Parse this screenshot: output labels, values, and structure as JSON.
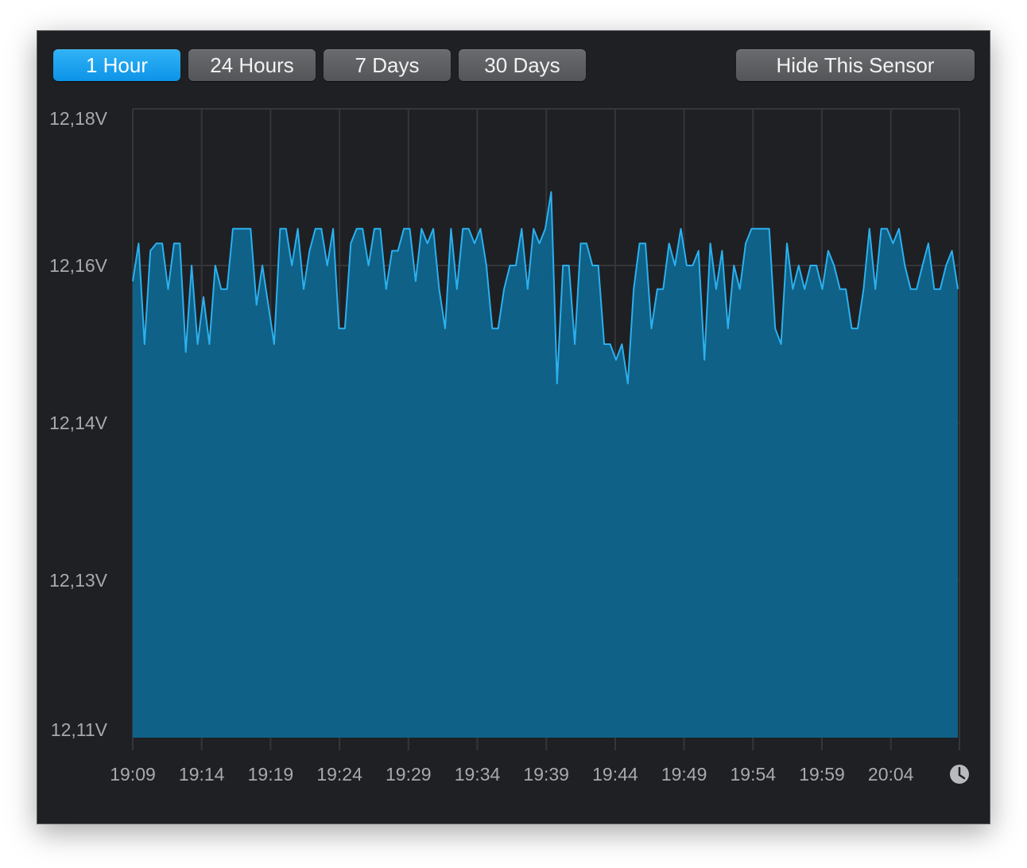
{
  "range_buttons": [
    {
      "label": "1 Hour",
      "active": true
    },
    {
      "label": "24 Hours",
      "active": false
    },
    {
      "label": "7 Days",
      "active": false
    },
    {
      "label": "30 Days",
      "active": false
    }
  ],
  "hide_sensor_label": "Hide This Sensor",
  "clock_icon": "clock-icon",
  "colors": {
    "line": "#2bb0ef",
    "fill": "#0f6187",
    "grid": "#34363a",
    "active_button": "#15a0ee"
  },
  "chart_data": {
    "type": "area",
    "xlabel": "",
    "ylabel": "",
    "x_ticks": [
      "19:09",
      "19:14",
      "19:19",
      "19:24",
      "19:29",
      "19:34",
      "19:39",
      "19:44",
      "19:49",
      "19:54",
      "19:59",
      "20:04"
    ],
    "y_ticks": [
      "12,18V",
      "12,16V",
      "12,14V",
      "12,13V",
      "12,11V"
    ],
    "grid": true,
    "series": [
      {
        "x": [
          "19:09",
          "19:09",
          "19:10",
          "19:10",
          "19:10",
          "19:11",
          "19:11",
          "19:11",
          "19:12",
          "19:12",
          "19:12",
          "19:13",
          "19:13",
          "19:13",
          "19:14",
          "19:14",
          "19:14",
          "19:15",
          "19:15",
          "19:15",
          "19:16",
          "19:16",
          "19:17",
          "19:17",
          "19:18",
          "19:18",
          "19:19",
          "19:19",
          "19:19",
          "19:20",
          "19:20",
          "19:21",
          "19:21",
          "19:21",
          "19:22",
          "19:22",
          "19:23",
          "19:23",
          "19:24",
          "19:24",
          "19:25",
          "19:25",
          "19:26",
          "19:26",
          "19:26",
          "19:27",
          "19:27",
          "19:28",
          "19:28",
          "19:29",
          "19:29",
          "19:30",
          "19:30",
          "19:30",
          "19:31",
          "19:31",
          "19:32",
          "19:32",
          "19:33",
          "19:33",
          "19:34",
          "19:34",
          "19:35",
          "19:35",
          "19:35",
          "19:36",
          "19:36",
          "19:37",
          "19:37",
          "19:38",
          "19:38",
          "19:39",
          "19:39",
          "19:39",
          "19:40",
          "19:40",
          "19:40",
          "19:41",
          "19:41",
          "19:41",
          "19:42",
          "19:42",
          "19:43",
          "19:43",
          "19:43",
          "19:44",
          "19:44",
          "19:45",
          "19:45",
          "19:46",
          "19:46",
          "19:46",
          "19:47",
          "19:47",
          "19:48",
          "19:48",
          "19:48",
          "19:49",
          "19:49",
          "19:50",
          "19:50",
          "19:51",
          "19:51",
          "19:51",
          "19:52",
          "19:52",
          "19:53",
          "19:53",
          "19:54",
          "19:54",
          "19:55",
          "19:55",
          "19:56",
          "19:56",
          "19:56",
          "19:57",
          "19:57",
          "19:58",
          "19:58",
          "19:59",
          "19:59",
          "20:00",
          "20:00",
          "20:00",
          "20:01",
          "20:01",
          "20:02",
          "20:02",
          "20:03",
          "20:03",
          "20:04",
          "20:04",
          "20:05",
          "20:05",
          "20:06",
          "20:06",
          "20:07",
          "20:07",
          "20:08",
          "20:08",
          "20:08"
        ],
        "y": [
          12.158,
          12.163,
          12.15,
          12.162,
          12.163,
          12.163,
          12.157,
          12.163,
          12.163,
          12.149,
          12.16,
          12.15,
          12.156,
          12.15,
          12.16,
          12.157,
          12.157,
          12.165,
          12.165,
          12.165,
          12.165,
          12.155,
          12.16,
          12.155,
          12.15,
          12.165,
          12.165,
          12.16,
          12.165,
          12.157,
          12.162,
          12.165,
          12.165,
          12.16,
          12.165,
          12.152,
          12.152,
          12.163,
          12.165,
          12.165,
          12.16,
          12.165,
          12.165,
          12.157,
          12.162,
          12.162,
          12.165,
          12.165,
          12.158,
          12.165,
          12.163,
          12.165,
          12.157,
          12.152,
          12.165,
          12.157,
          12.165,
          12.165,
          12.163,
          12.165,
          12.16,
          12.152,
          12.152,
          12.157,
          12.16,
          12.16,
          12.165,
          12.157,
          12.165,
          12.163,
          12.165,
          12.17,
          12.145,
          12.16,
          12.16,
          12.15,
          12.163,
          12.163,
          12.16,
          12.16,
          12.15,
          12.15,
          12.148,
          12.15,
          12.145,
          12.157,
          12.163,
          12.163,
          12.152,
          12.157,
          12.157,
          12.163,
          12.16,
          12.165,
          12.16,
          12.16,
          12.162,
          12.148,
          12.163,
          12.157,
          12.162,
          12.152,
          12.16,
          12.157,
          12.163,
          12.165,
          12.165,
          12.165,
          12.165,
          12.152,
          12.15,
          12.163,
          12.157,
          12.16,
          12.157,
          12.16,
          12.16,
          12.157,
          12.162,
          12.16,
          12.157,
          12.157,
          12.152,
          12.152,
          12.157,
          12.165,
          12.157,
          12.165,
          12.165,
          12.163,
          12.165,
          12.16,
          12.157,
          12.157,
          12.16,
          12.163,
          12.157,
          12.157,
          12.16,
          12.162,
          12.157
        ]
      }
    ]
  }
}
